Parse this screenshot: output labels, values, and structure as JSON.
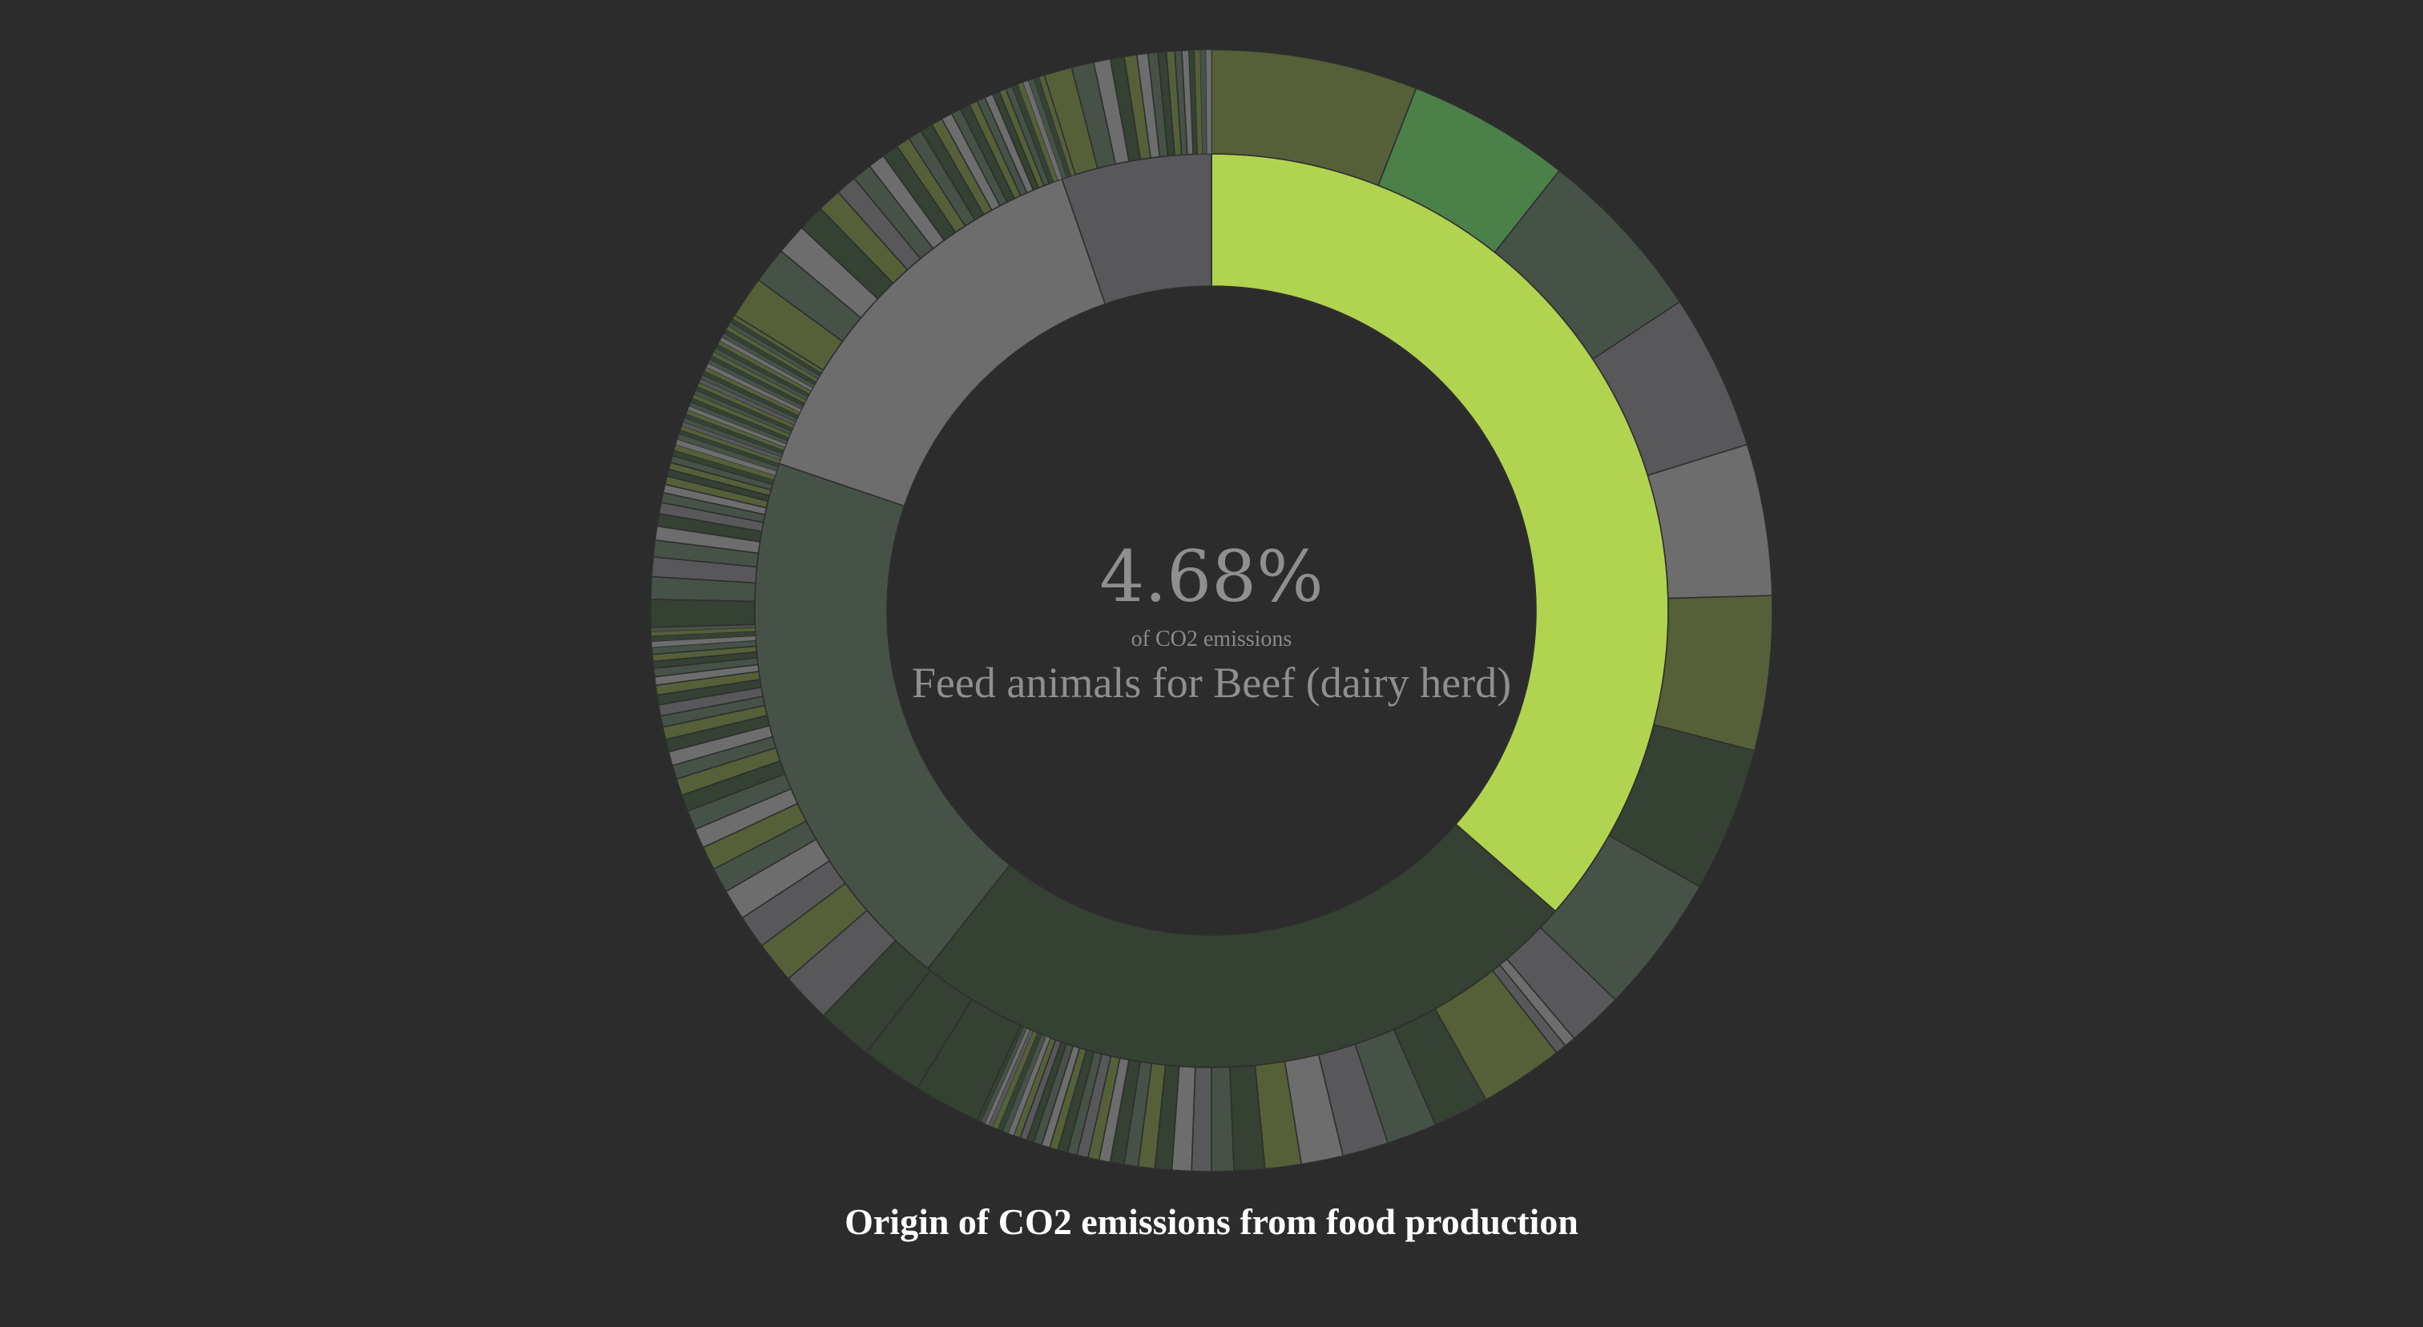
{
  "chart_data": {
    "type": "sunburst",
    "title": "Origin of CO2 emissions from food production",
    "center": {
      "value": "4.68%",
      "sublabel": "of CO2 emissions",
      "name": "Feed animals for Beef (dairy herd)"
    },
    "colors": {
      "background": "#2c2c2c",
      "highlight": "#b1d450",
      "stroke": "#2f2f2f",
      "palette": [
        "#556039",
        "#4b8049",
        "#465247",
        "#58575a",
        "#6d6d6d",
        "#354133"
      ]
    },
    "inner_ring": [
      {
        "share": 0.3643,
        "color": "#b1d450",
        "highlighted": true
      },
      {
        "share": 0.2424,
        "color": "#354133"
      },
      {
        "share": 0.1955,
        "color": "#465247"
      },
      {
        "share": 0.1447,
        "color": "#6d6d6d"
      },
      {
        "share": 0.0531,
        "color": "#58575a"
      }
    ],
    "outer_ring": [
      {
        "share": 0.0741,
        "color": "#556039"
      },
      {
        "share": 0.0586,
        "color": "#4b8049"
      },
      {
        "share": 0.0632,
        "color": "#465247"
      },
      {
        "share": 0.056,
        "color": "#58575a"
      },
      {
        "share": 0.0543,
        "color": "#6d6d6d"
      },
      {
        "share": 0.0554,
        "color": "#556039"
      },
      {
        "share": 0.052,
        "color": "#354133"
      },
      {
        "share": 0.05,
        "color": "#465247"
      },
      {
        "share": 0.02,
        "color": "#58575a"
      },
      {
        "share": 0.004,
        "color": "#6d6d6d"
      },
      {
        "share": 0.004,
        "color": "#58575a"
      },
      {
        "share": 0.03,
        "color": "#556039"
      },
      {
        "share": 0.02,
        "color": "#354133"
      },
      {
        "share": 0.018,
        "color": "#465247"
      },
      {
        "share": 0.0165,
        "color": "#58575a"
      },
      {
        "share": 0.015,
        "color": "#6d6d6d"
      },
      {
        "share": 0.013,
        "color": "#556039"
      },
      {
        "share": 0.011,
        "color": "#354133"
      },
      {
        "share": 0.008,
        "color": "#465247"
      },
      {
        "share": 0.007,
        "color": "#58575a"
      },
      {
        "share": 0.007,
        "color": "#6d6d6d"
      },
      {
        "share": 0.006,
        "color": "#354133"
      },
      {
        "share": 0.006,
        "color": "#556039"
      },
      {
        "share": 0.005,
        "color": "#465247"
      },
      {
        "share": 0.005,
        "color": "#354133"
      },
      {
        "share": 0.004,
        "color": "#6d6d6d"
      },
      {
        "share": 0.004,
        "color": "#556039"
      },
      {
        "share": 0.004,
        "color": "#58575a"
      },
      {
        "share": 0.0035,
        "color": "#465247"
      },
      {
        "share": 0.0035,
        "color": "#354133"
      },
      {
        "share": 0.003,
        "color": "#556039"
      },
      {
        "share": 0.003,
        "color": "#6d6d6d"
      },
      {
        "share": 0.003,
        "color": "#465247"
      },
      {
        "share": 0.0025,
        "color": "#354133"
      },
      {
        "share": 0.0025,
        "color": "#58575a"
      },
      {
        "share": 0.0025,
        "color": "#556039"
      },
      {
        "share": 0.002,
        "color": "#6d6d6d"
      },
      {
        "share": 0.002,
        "color": "#465247"
      },
      {
        "share": 0.002,
        "color": "#354133"
      },
      {
        "share": 0.002,
        "color": "#556039"
      },
      {
        "share": 0.0015,
        "color": "#58575a"
      },
      {
        "share": 0.0015,
        "color": "#6d6d6d"
      },
      {
        "share": 0.0015,
        "color": "#465247"
      },
      {
        "share": 0.0015,
        "color": "#354133"
      },
      {
        "share": 0.024,
        "color": "#354133"
      },
      {
        "share": 0.022,
        "color": "#354133"
      },
      {
        "share": 0.02,
        "color": "#354133"
      },
      {
        "share": 0.018,
        "color": "#58575a"
      },
      {
        "share": 0.015,
        "color": "#556039"
      },
      {
        "share": 0.012,
        "color": "#58575a"
      },
      {
        "share": 0.011,
        "color": "#6d6d6d"
      },
      {
        "share": 0.009,
        "color": "#465247"
      },
      {
        "share": 0.0085,
        "color": "#556039"
      },
      {
        "share": 0.007,
        "color": "#6d6d6d"
      },
      {
        "share": 0.007,
        "color": "#465247"
      },
      {
        "share": 0.006,
        "color": "#354133"
      },
      {
        "share": 0.006,
        "color": "#556039"
      },
      {
        "share": 0.005,
        "color": "#465247"
      },
      {
        "share": 0.005,
        "color": "#6d6d6d"
      },
      {
        "share": 0.0045,
        "color": "#354133"
      },
      {
        "share": 0.0045,
        "color": "#556039"
      },
      {
        "share": 0.004,
        "color": "#465247"
      },
      {
        "share": 0.004,
        "color": "#58575a"
      },
      {
        "share": 0.0035,
        "color": "#354133"
      },
      {
        "share": 0.0035,
        "color": "#556039"
      },
      {
        "share": 0.003,
        "color": "#6d6d6d"
      },
      {
        "share": 0.003,
        "color": "#465247"
      },
      {
        "share": 0.0025,
        "color": "#354133"
      },
      {
        "share": 0.0025,
        "color": "#556039"
      },
      {
        "share": 0.0025,
        "color": "#465247"
      },
      {
        "share": 0.002,
        "color": "#6d6d6d"
      },
      {
        "share": 0.002,
        "color": "#354133"
      },
      {
        "share": 0.0015,
        "color": "#556039"
      },
      {
        "share": 0.0015,
        "color": "#465247"
      },
      {
        "share": 0.01,
        "color": "#354133"
      },
      {
        "share": 0.008,
        "color": "#465247"
      },
      {
        "share": 0.007,
        "color": "#58575a"
      },
      {
        "share": 0.006,
        "color": "#465247"
      },
      {
        "share": 0.005,
        "color": "#6d6d6d"
      },
      {
        "share": 0.0045,
        "color": "#354133"
      },
      {
        "share": 0.004,
        "color": "#58575a"
      },
      {
        "share": 0.0035,
        "color": "#465247"
      },
      {
        "share": 0.003,
        "color": "#6d6d6d"
      },
      {
        "share": 0.003,
        "color": "#556039"
      },
      {
        "share": 0.0025,
        "color": "#354133"
      },
      {
        "share": 0.0025,
        "color": "#556039"
      },
      {
        "share": 0.0025,
        "color": "#465247"
      },
      {
        "share": 0.002,
        "color": "#354133"
      },
      {
        "share": 0.002,
        "color": "#556039"
      },
      {
        "share": 0.002,
        "color": "#6d6d6d"
      },
      {
        "share": 0.002,
        "color": "#465247"
      },
      {
        "share": 0.0015,
        "color": "#354133"
      },
      {
        "share": 0.0015,
        "color": "#556039"
      },
      {
        "share": 0.0015,
        "color": "#58575a"
      },
      {
        "share": 0.0015,
        "color": "#465247"
      },
      {
        "share": 0.0015,
        "color": "#354133"
      },
      {
        "share": 0.0015,
        "color": "#556039"
      },
      {
        "share": 0.0015,
        "color": "#6d6d6d"
      },
      {
        "share": 0.0015,
        "color": "#465247"
      },
      {
        "share": 0.0015,
        "color": "#354133"
      },
      {
        "share": 0.0015,
        "color": "#556039"
      },
      {
        "share": 0.0015,
        "color": "#465247"
      },
      {
        "share": 0.0015,
        "color": "#354133"
      },
      {
        "share": 0.0015,
        "color": "#556039"
      },
      {
        "share": 0.0015,
        "color": "#58575a"
      },
      {
        "share": 0.0015,
        "color": "#465247"
      },
      {
        "share": 0.0015,
        "color": "#354133"
      },
      {
        "share": 0.0015,
        "color": "#556039"
      },
      {
        "share": 0.0015,
        "color": "#6d6d6d"
      },
      {
        "share": 0.0015,
        "color": "#465247"
      },
      {
        "share": 0.0015,
        "color": "#354133"
      },
      {
        "share": 0.0015,
        "color": "#556039"
      },
      {
        "share": 0.0015,
        "color": "#465247"
      },
      {
        "share": 0.0015,
        "color": "#354133"
      },
      {
        "share": 0.0015,
        "color": "#556039"
      },
      {
        "share": 0.0015,
        "color": "#6d6d6d"
      },
      {
        "share": 0.0015,
        "color": "#465247"
      },
      {
        "share": 0.0015,
        "color": "#354133"
      },
      {
        "share": 0.0015,
        "color": "#556039"
      },
      {
        "share": 0.0015,
        "color": "#465247"
      },
      {
        "share": 0.0015,
        "color": "#354133"
      },
      {
        "share": 0.0015,
        "color": "#556039"
      },
      {
        "share": 0.015,
        "color": "#556039"
      },
      {
        "share": 0.013,
        "color": "#465247"
      },
      {
        "share": 0.011,
        "color": "#6d6d6d"
      },
      {
        "share": 0.0095,
        "color": "#354133"
      },
      {
        "share": 0.0085,
        "color": "#556039"
      },
      {
        "share": 0.0075,
        "color": "#58575a"
      },
      {
        "share": 0.007,
        "color": "#465247"
      },
      {
        "share": 0.006,
        "color": "#6d6d6d"
      },
      {
        "share": 0.006,
        "color": "#354133"
      },
      {
        "share": 0.005,
        "color": "#556039"
      },
      {
        "share": 0.005,
        "color": "#465247"
      },
      {
        "share": 0.0045,
        "color": "#354133"
      },
      {
        "share": 0.004,
        "color": "#556039"
      },
      {
        "share": 0.004,
        "color": "#6d6d6d"
      },
      {
        "share": 0.0035,
        "color": "#465247"
      },
      {
        "share": 0.0035,
        "color": "#354133"
      },
      {
        "share": 0.003,
        "color": "#556039"
      },
      {
        "share": 0.003,
        "color": "#465247"
      },
      {
        "share": 0.003,
        "color": "#6d6d6d"
      },
      {
        "share": 0.0025,
        "color": "#354133"
      },
      {
        "share": 0.0025,
        "color": "#556039"
      },
      {
        "share": 0.0025,
        "color": "#465247"
      },
      {
        "share": 0.002,
        "color": "#354133"
      },
      {
        "share": 0.002,
        "color": "#556039"
      },
      {
        "share": 0.002,
        "color": "#6d6d6d"
      },
      {
        "share": 0.002,
        "color": "#465247"
      },
      {
        "share": 0.002,
        "color": "#354133"
      },
      {
        "share": 0.002,
        "color": "#556039"
      },
      {
        "share": 0.01,
        "color": "#556039"
      },
      {
        "share": 0.008,
        "color": "#465247"
      },
      {
        "share": 0.006,
        "color": "#6d6d6d"
      },
      {
        "share": 0.005,
        "color": "#354133"
      },
      {
        "share": 0.0045,
        "color": "#556039"
      },
      {
        "share": 0.004,
        "color": "#6d6d6d"
      },
      {
        "share": 0.0035,
        "color": "#465247"
      },
      {
        "share": 0.003,
        "color": "#354133"
      },
      {
        "share": 0.003,
        "color": "#556039"
      },
      {
        "share": 0.0025,
        "color": "#465247"
      },
      {
        "share": 0.0025,
        "color": "#6d6d6d"
      },
      {
        "share": 0.002,
        "color": "#354133"
      },
      {
        "share": 0.002,
        "color": "#556039"
      },
      {
        "share": 0.002,
        "color": "#465247"
      },
      {
        "share": 0.002,
        "color": "#6d6d6d"
      }
    ]
  }
}
